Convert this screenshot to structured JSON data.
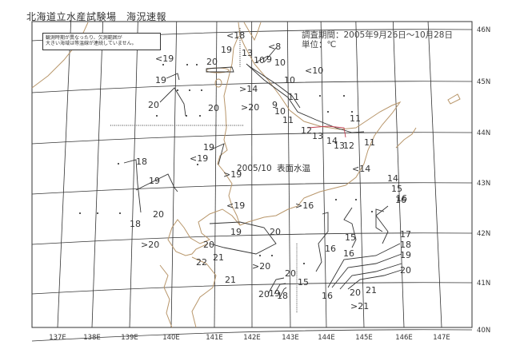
{
  "header": {
    "title": "北海道立水産試験場　海況速報",
    "period": "調査期間：2005年9月26日〜10月28日",
    "unit": "単位：℃"
  },
  "note": {
    "line1": "観測時期が異なったり、欠測範囲が",
    "line2": "大きい海域は等温線が連続していません。"
  },
  "map": {
    "caption_date": "2005/10",
    "caption_type": "表面水温",
    "coast_color": "#b8966a",
    "grid_color": "#333333",
    "isotherm_color": "#333333",
    "latitude_labels": [
      "46N",
      "45N",
      "44N",
      "43N",
      "42N",
      "41N",
      "40N"
    ],
    "longitude_labels": [
      "137E",
      "138E",
      "139E",
      "140E",
      "141E",
      "142E",
      "143E",
      "144E",
      "145E",
      "146E",
      "147E"
    ],
    "temperature_labels": [
      "<18",
      "19",
      "<19",
      "13",
      "<8",
      "10",
      "9",
      "10",
      "<10",
      "20",
      "19",
      "10",
      ">14",
      "20",
      "20",
      ">20",
      "9",
      "10",
      "11",
      "11",
      "11",
      "12",
      "13",
      "14",
      "13",
      "12",
      "11",
      "19",
      "<19",
      ">19",
      "18",
      "19",
      "18",
      "20",
      ">20",
      "<19",
      "19",
      "20",
      "20",
      ">16",
      "16",
      "<14",
      "14",
      "15",
      "16",
      "21",
      "22",
      ">20",
      "21",
      "20",
      "15",
      "20",
      "19",
      "18",
      "16",
      "20",
      "21",
      ">21",
      "15",
      "16",
      "16",
      "17",
      "18",
      "19",
      "20"
    ]
  }
}
